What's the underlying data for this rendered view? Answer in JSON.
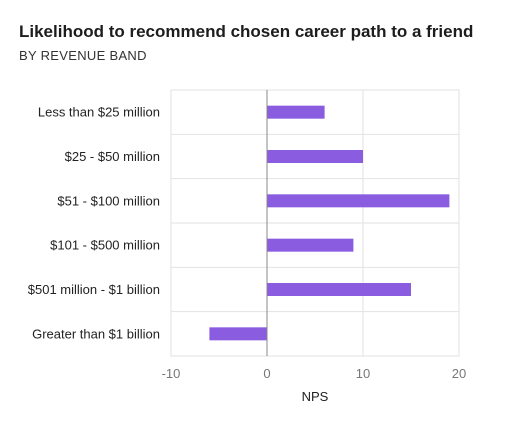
{
  "chart_data": {
    "type": "bar",
    "orientation": "horizontal",
    "title": "Likelihood to recommend chosen career path to a friend",
    "subtitle": "BY REVENUE BAND",
    "xlabel": "NPS",
    "ylabel": "",
    "categories": [
      "Less than $25 million",
      "$25 - $50 million",
      "$51  - $100 million",
      "$101 - $500 million",
      "$501 million - $1 billion",
      "Greater than $1 billion"
    ],
    "values": [
      6,
      10,
      19,
      9,
      15,
      -6
    ],
    "xlim": [
      -10,
      20
    ],
    "xticks": [
      -10,
      0,
      10,
      20
    ],
    "bar_color": "#8a5ce0",
    "grid": true
  }
}
